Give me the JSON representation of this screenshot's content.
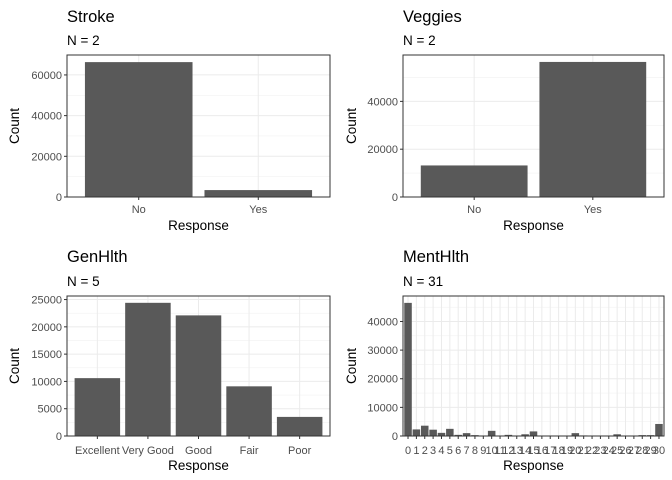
{
  "chart_data": [
    {
      "type": "bar",
      "title": "Stroke",
      "subtitle": "N = 2",
      "xlabel": "Response",
      "ylabel": "Count",
      "categories": [
        "No",
        "Yes"
      ],
      "values": [
        66300,
        3400
      ],
      "ylim": [
        0,
        69800
      ],
      "yticks": [
        0,
        20000,
        40000,
        60000
      ],
      "grid": true
    },
    {
      "type": "bar",
      "title": "Veggies",
      "subtitle": "N = 2",
      "xlabel": "Response",
      "ylabel": "Count",
      "categories": [
        "No",
        "Yes"
      ],
      "values": [
        13200,
        56500
      ],
      "ylim": [
        0,
        59400
      ],
      "yticks": [
        0,
        20000,
        40000
      ],
      "grid": true
    },
    {
      "type": "bar",
      "title": "GenHlth",
      "subtitle": "N = 5",
      "xlabel": "Response",
      "ylabel": "Count",
      "categories": [
        "Excellent",
        "Very Good",
        "Good",
        "Fair",
        "Poor"
      ],
      "values": [
        10600,
        24400,
        22100,
        9100,
        3500
      ],
      "ylim": [
        0,
        25650
      ],
      "yticks": [
        0,
        5000,
        10000,
        15000,
        20000,
        25000
      ],
      "grid": true
    },
    {
      "type": "bar",
      "title": "MentHlth",
      "subtitle": "N = 31",
      "xlabel": "Response",
      "ylabel": "Count",
      "categories": [
        "0",
        "1",
        "2",
        "3",
        "4",
        "5",
        "6",
        "7",
        "8",
        "9",
        "10",
        "11",
        "12",
        "13",
        "14",
        "15",
        "16",
        "17",
        "18",
        "19",
        "20",
        "21",
        "22",
        "23",
        "24",
        "25",
        "26",
        "27",
        "28",
        "29",
        "30"
      ],
      "values": [
        46500,
        2300,
        3600,
        2200,
        1100,
        2500,
        400,
        1000,
        300,
        50,
        1800,
        50,
        400,
        50,
        600,
        1600,
        50,
        50,
        80,
        50,
        1000,
        200,
        50,
        50,
        50,
        600,
        50,
        100,
        300,
        300,
        4200
      ],
      "ylim": [
        0,
        48900
      ],
      "yticks": [
        0,
        10000,
        20000,
        30000,
        40000
      ],
      "grid": true
    }
  ]
}
